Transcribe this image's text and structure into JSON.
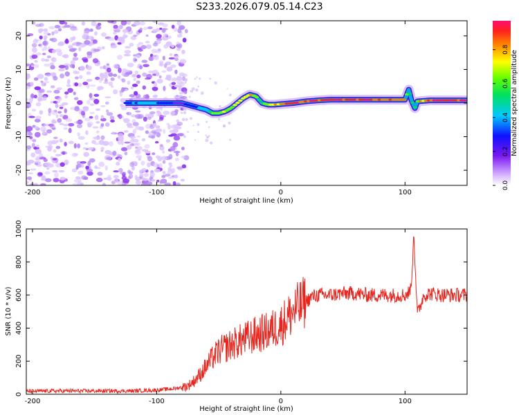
{
  "title": "S233.2026.079.05.14.C23",
  "chart_data": [
    {
      "type": "heatmap",
      "name": "spectrogram",
      "xlabel": "Height of straight line (km)",
      "ylabel": "Frequency (Hz)",
      "xlim": [
        -205,
        150
      ],
      "ylim": [
        -24.5,
        24.5
      ],
      "xticks": [
        -200,
        -100,
        0,
        100
      ],
      "xtick_labels": [
        "-200",
        "-100",
        "0",
        "100"
      ],
      "yticks": [
        -20,
        -10,
        0,
        10,
        20
      ],
      "ytick_labels": [
        "-20",
        "-10",
        "0",
        "10",
        "20"
      ],
      "noise_region_x": [
        -205,
        -80
      ],
      "ridge": {
        "x": [
          -125,
          -110,
          -100,
          -90,
          -80,
          -70,
          -60,
          -55,
          -50,
          -45,
          -40,
          -35,
          -30,
          -25,
          -20,
          -15,
          -10,
          -5,
          0,
          10,
          20,
          30,
          40,
          50,
          60,
          70,
          80,
          90,
          100,
          103,
          105,
          108,
          110,
          120,
          130,
          140,
          150
        ],
        "y": [
          0,
          0,
          0,
          0,
          0,
          -1,
          -2,
          -3,
          -3,
          -2.5,
          -1.5,
          0,
          1.5,
          2.5,
          2,
          0,
          -0.5,
          -0.5,
          -0.3,
          0,
          0.5,
          0.8,
          1,
          1,
          1,
          1,
          1,
          1,
          1,
          4,
          1,
          -1.5,
          0.5,
          0.8,
          0.8,
          0.8,
          0.8
        ],
        "amplitude": [
          0.25,
          0.35,
          0.3,
          0.2,
          0.15,
          0.25,
          0.35,
          0.55,
          0.7,
          0.6,
          0.6,
          0.7,
          0.7,
          0.75,
          0.6,
          0.55,
          0.6,
          0.8,
          0.85,
          0.9,
          0.95,
          0.95,
          0.9,
          0.95,
          0.95,
          0.95,
          0.9,
          0.9,
          0.8,
          0.4,
          0.6,
          0.4,
          0.7,
          0.95,
          0.95,
          0.95,
          0.9
        ]
      }
    },
    {
      "type": "colorbar",
      "name": "amplitude-colorbar",
      "label": "Normalized spectral amplitude",
      "range": [
        0,
        0.97
      ],
      "ticks": [
        0.0,
        0.2,
        0.4,
        0.6,
        0.8
      ],
      "tick_labels": [
        "0.0",
        "0.2",
        "0.4",
        "0.6",
        "0.8"
      ]
    },
    {
      "type": "line",
      "name": "snr-line",
      "xlabel": "Height of straight line (km)",
      "ylabel": "SNR (10 * v/v)",
      "xlim": [
        -205,
        150
      ],
      "ylim": [
        0,
        1000
      ],
      "xticks": [
        -200,
        -100,
        0,
        100
      ],
      "xtick_labels": [
        "-200",
        "-100",
        "0",
        "100"
      ],
      "yticks": [
        0,
        200,
        400,
        600,
        800,
        1000
      ],
      "ytick_labels": [
        "0",
        "200",
        "400",
        "600",
        "800",
        "1000"
      ],
      "color": "#e8241d",
      "series": [
        {
          "name": "SNR",
          "x": [
            -205,
            -180,
            -150,
            -120,
            -100,
            -85,
            -75,
            -70,
            -65,
            -60,
            -55,
            -50,
            -40,
            -30,
            -20,
            -10,
            0,
            10,
            20,
            25,
            30,
            40,
            50,
            60,
            70,
            80,
            90,
            100,
            104,
            106,
            107,
            110,
            115,
            120,
            130,
            140,
            150
          ],
          "y": [
            18,
            20,
            20,
            20,
            25,
            35,
            50,
            80,
            120,
            170,
            220,
            260,
            300,
            330,
            360,
            380,
            420,
            500,
            560,
            590,
            600,
            600,
            610,
            610,
            600,
            600,
            600,
            600,
            620,
            760,
            990,
            480,
            600,
            610,
            600,
            600,
            600
          ]
        }
      ]
    }
  ]
}
